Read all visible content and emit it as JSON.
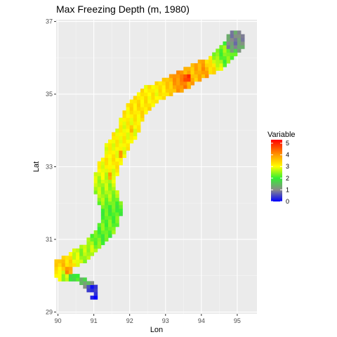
{
  "chart_data": {
    "type": "heatmap",
    "title": "Max Freezing Depth (m, 1980)",
    "xlabel": "Lon",
    "ylabel": "Lat",
    "xlim": [
      89.95,
      95.55
    ],
    "ylim": [
      28.95,
      37.05
    ],
    "x_ticks": [
      90,
      91,
      92,
      93,
      94,
      95
    ],
    "y_ticks": [
      29,
      31,
      33,
      35,
      37
    ],
    "grid": true,
    "legend": {
      "title": "Variable",
      "position": "right",
      "range": [
        0,
        5.3
      ],
      "ticks": [
        0,
        1,
        2,
        3,
        4,
        5
      ],
      "colors": [
        {
          "value": 0,
          "color": "#0000ff"
        },
        {
          "value": 1,
          "color": "#8a8a8a"
        },
        {
          "value": 2,
          "color": "#33ee33"
        },
        {
          "value": 3,
          "color": "#ffff00"
        },
        {
          "value": 4,
          "color": "#ff9900"
        },
        {
          "value": 5.3,
          "color": "#ff0000"
        }
      ]
    },
    "region_path": [
      [
        90.2,
        30.05
      ],
      [
        90.05,
        30.15
      ],
      [
        90.1,
        30.3
      ],
      [
        90.35,
        30.4
      ],
      [
        90.5,
        30.5
      ],
      [
        90.7,
        30.6
      ],
      [
        90.9,
        30.75
      ],
      [
        91.05,
        30.95
      ],
      [
        91.25,
        31.1
      ],
      [
        91.35,
        31.3
      ],
      [
        91.45,
        31.55
      ],
      [
        91.5,
        31.85
      ],
      [
        91.4,
        32.15
      ],
      [
        91.3,
        32.5
      ],
      [
        91.35,
        32.85
      ],
      [
        91.5,
        33.15
      ],
      [
        91.6,
        33.45
      ],
      [
        91.75,
        33.7
      ],
      [
        91.95,
        34.0
      ],
      [
        92.05,
        34.3
      ],
      [
        92.2,
        34.6
      ],
      [
        92.45,
        34.9
      ],
      [
        92.75,
        35.05
      ],
      [
        93.05,
        35.2
      ],
      [
        93.4,
        35.35
      ],
      [
        93.75,
        35.55
      ],
      [
        94.05,
        35.7
      ],
      [
        94.3,
        35.8
      ],
      [
        94.55,
        36.0
      ],
      [
        94.75,
        36.2
      ],
      [
        94.9,
        36.35
      ],
      [
        94.95,
        36.55
      ]
    ],
    "region_widths": [
      0.22,
      0.2,
      0.2,
      0.2,
      0.22,
      0.22,
      0.2,
      0.2,
      0.22,
      0.24,
      0.28,
      0.3,
      0.3,
      0.3,
      0.3,
      0.28,
      0.3,
      0.3,
      0.3,
      0.3,
      0.28,
      0.28,
      0.26,
      0.26,
      0.26,
      0.26,
      0.24,
      0.24,
      0.26,
      0.26,
      0.26,
      0.22
    ],
    "region_values": [
      2.6,
      3.1,
      3.6,
      3.3,
      2.8,
      2.5,
      2.7,
      2.3,
      2.1,
      2.3,
      2.2,
      2.1,
      2.5,
      2.6,
      2.9,
      3.2,
      3.0,
      3.1,
      3.0,
      3.1,
      3.3,
      3.2,
      3.1,
      3.4,
      4.2,
      3.6,
      3.9,
      3.2,
      2.2,
      2.4,
      1.3,
      1.1
    ],
    "hotspots": [
      {
        "lon": 90.3,
        "lat": 30.15,
        "radius": 0.1,
        "value": 4.0
      },
      {
        "lon": 90.45,
        "lat": 29.95,
        "radius": 0.12,
        "value": 1.9
      },
      {
        "lon": 90.7,
        "lat": 29.85,
        "radius": 0.14,
        "value": 1.6
      },
      {
        "lon": 90.85,
        "lat": 29.75,
        "radius": 0.14,
        "value": 1.3
      },
      {
        "lon": 90.95,
        "lat": 29.65,
        "radius": 0.14,
        "value": 0.3
      },
      {
        "lon": 91.05,
        "lat": 29.55,
        "radius": 0.08,
        "value": 0.6
      },
      {
        "lon": 91.0,
        "lat": 29.42,
        "radius": 0.06,
        "value": 0.0
      },
      {
        "lon": 91.75,
        "lat": 33.35,
        "radius": 0.1,
        "value": 3.8
      },
      {
        "lon": 91.45,
        "lat": 32.75,
        "radius": 0.09,
        "value": 3.7
      },
      {
        "lon": 92.05,
        "lat": 34.05,
        "radius": 0.08,
        "value": 3.6
      },
      {
        "lon": 93.6,
        "lat": 35.45,
        "radius": 0.12,
        "value": 4.8
      },
      {
        "lon": 94.05,
        "lat": 35.65,
        "radius": 0.1,
        "value": 4.1
      },
      {
        "lon": 94.85,
        "lat": 36.35,
        "radius": 0.18,
        "value": 1.1
      },
      {
        "lon": 94.95,
        "lat": 36.5,
        "radius": 0.16,
        "value": 1.0
      }
    ]
  }
}
